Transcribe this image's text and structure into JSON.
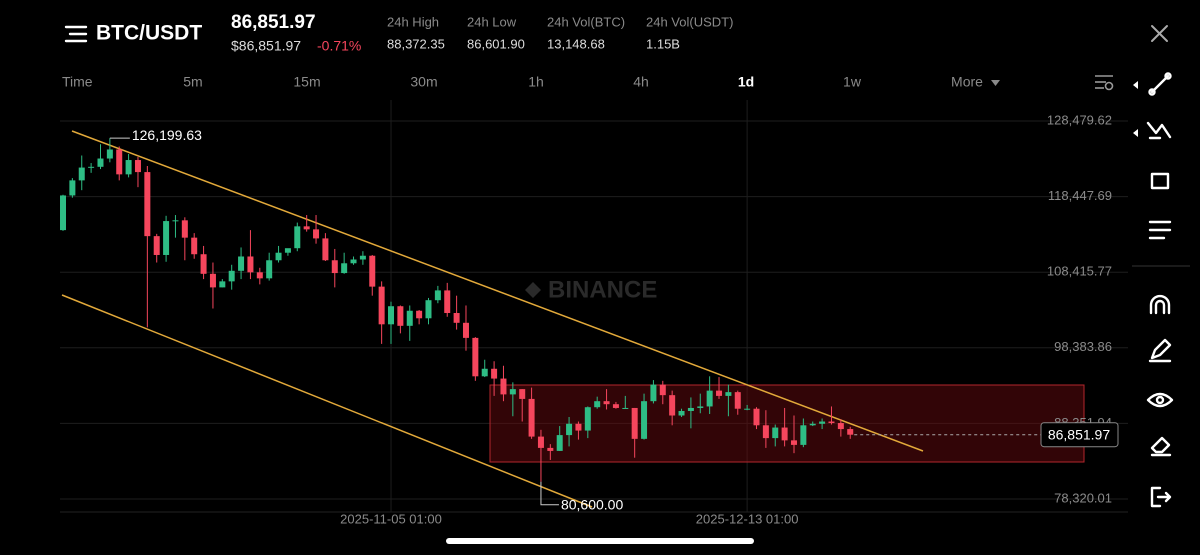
{
  "header": {
    "pair": "BTC/USDT",
    "price": "86,851.97",
    "price_usd": "$86,851.97",
    "change": "-0.71%"
  },
  "stats": [
    {
      "label": "24h High",
      "value": "88,372.35"
    },
    {
      "label": "24h Low",
      "value": "86,601.90"
    },
    {
      "label": "24h Vol(BTC)",
      "value": "13,148.68"
    },
    {
      "label": "24h Vol(USDT)",
      "value": "1.15B"
    }
  ],
  "intervals": [
    "Time",
    "5m",
    "15m",
    "30m",
    "1h",
    "4h",
    "1d",
    "1w",
    "More"
  ],
  "active_interval": "1d",
  "watermark": "BINANCE",
  "chart_data": {
    "type": "candlestick",
    "up_color": "#2ebd85",
    "down_color": "#f6465d",
    "grid": true,
    "candles": [
      [
        114000,
        118700,
        113900,
        118600
      ],
      [
        118600,
        120900,
        118300,
        120600
      ],
      [
        120600,
        123900,
        119300,
        122300
      ],
      [
        122300,
        122900,
        121600,
        122400
      ],
      [
        122400,
        125400,
        122100,
        123500
      ],
      [
        123500,
        126199.63,
        123000,
        124700
      ],
      [
        124700,
        125100,
        120600,
        121400
      ],
      [
        121400,
        124100,
        121000,
        123300
      ],
      [
        123300,
        123700,
        119700,
        121700
      ],
      [
        121700,
        122500,
        101100,
        113200
      ],
      [
        113200,
        113500,
        109700,
        110700
      ],
      [
        110700,
        115900,
        109800,
        115200
      ],
      [
        115200,
        116000,
        113000,
        115300
      ],
      [
        115300,
        115700,
        110000,
        113000
      ],
      [
        113000,
        113600,
        110200,
        110800
      ],
      [
        110800,
        111900,
        107500,
        108200
      ],
      [
        108200,
        109700,
        103600,
        106400
      ],
      [
        106400,
        107500,
        106400,
        107200
      ],
      [
        107200,
        109400,
        106100,
        108600
      ],
      [
        108600,
        111700,
        107500,
        110500
      ],
      [
        110500,
        114000,
        107500,
        108400
      ],
      [
        108400,
        109000,
        106800,
        107600
      ],
      [
        107600,
        111000,
        107300,
        110000
      ],
      [
        110000,
        111900,
        109700,
        111000
      ],
      [
        111000,
        111500,
        110600,
        111600
      ],
      [
        111600,
        115000,
        111200,
        114500
      ],
      [
        114500,
        116000,
        113800,
        114100
      ],
      [
        114100,
        116000,
        112200,
        112900
      ],
      [
        112900,
        113600,
        109900,
        110000
      ],
      [
        110000,
        111500,
        106400,
        108300
      ],
      [
        108300,
        111000,
        108200,
        109600
      ],
      [
        109600,
        110500,
        109400,
        110100
      ],
      [
        110100,
        111200,
        109400,
        110600
      ],
      [
        110600,
        110700,
        105300,
        106500
      ],
      [
        106500,
        107200,
        98900,
        101500
      ],
      [
        101500,
        104500,
        98900,
        103900
      ],
      [
        103900,
        104000,
        100300,
        101300
      ],
      [
        101300,
        104000,
        99300,
        103300
      ],
      [
        103300,
        103400,
        101500,
        102300
      ],
      [
        102300,
        105000,
        101500,
        104700
      ],
      [
        104700,
        106600,
        104300,
        106000
      ],
      [
        106000,
        107000,
        102500,
        103000
      ],
      [
        103000,
        105300,
        100800,
        101700
      ],
      [
        101700,
        104000,
        98000,
        99700
      ],
      [
        99700,
        99800,
        94000,
        94600
      ],
      [
        94600,
        96800,
        94500,
        95600
      ],
      [
        95600,
        96600,
        92000,
        94300
      ],
      [
        94300,
        96000,
        91300,
        92200
      ],
      [
        92200,
        93800,
        89300,
        92900
      ],
      [
        92900,
        92900,
        88600,
        91600
      ],
      [
        91600,
        93100,
        86300,
        86600
      ],
      [
        86600,
        87500,
        80600,
        85100
      ],
      [
        85100,
        85600,
        83500,
        84700
      ],
      [
        84700,
        88000,
        84700,
        86800
      ],
      [
        86800,
        89200,
        85300,
        88300
      ],
      [
        88300,
        88600,
        86200,
        87400
      ],
      [
        87400,
        90600,
        86400,
        90500
      ],
      [
        90500,
        91900,
        90300,
        91300
      ],
      [
        91300,
        92900,
        90200,
        90900
      ],
      [
        90900,
        91200,
        90300,
        90400
      ],
      [
        90400,
        92000,
        90300,
        90400
      ],
      [
        90400,
        90400,
        83800,
        86300
      ],
      [
        86300,
        92300,
        86200,
        91300
      ],
      [
        91300,
        94100,
        91000,
        93500
      ],
      [
        93500,
        94000,
        90900,
        92100
      ],
      [
        92100,
        92700,
        88100,
        89400
      ],
      [
        89400,
        90300,
        89200,
        90000
      ],
      [
        90000,
        91800,
        87700,
        90400
      ],
      [
        90400,
        92300,
        89700,
        90600
      ],
      [
        90600,
        94600,
        89600,
        92700
      ],
      [
        92700,
        94500,
        91600,
        92000
      ],
      [
        92000,
        93500,
        89300,
        92500
      ],
      [
        92500,
        92700,
        89500,
        90300
      ],
      [
        90300,
        90800,
        90100,
        90300
      ],
      [
        90300,
        90500,
        87600,
        88100
      ],
      [
        88100,
        90100,
        85100,
        86400
      ],
      [
        86400,
        88200,
        85300,
        87800
      ],
      [
        87800,
        90400,
        85300,
        86100
      ],
      [
        86100,
        89400,
        84400,
        85500
      ],
      [
        85500,
        89000,
        85200,
        88100
      ],
      [
        88100,
        88600,
        88000,
        88300
      ],
      [
        88300,
        89000,
        87600,
        88600
      ],
      [
        88600,
        90600,
        88200,
        88400
      ],
      [
        88400,
        88900,
        86600,
        87600
      ],
      [
        87600,
        87900,
        86300,
        86851.97
      ]
    ],
    "xlim": [
      0,
      113
    ],
    "xticks": [
      {
        "value": 35,
        "label": "2025-11-05 01:00"
      },
      {
        "value": 73,
        "label": "2025-12-13 01:00"
      }
    ],
    "ylim": [
      76594,
      131266
    ],
    "yticks": [
      {
        "value": 128479.62,
        "label": "128,479.62"
      },
      {
        "value": 118447.69,
        "label": "118,447.69"
      },
      {
        "value": 108415.77,
        "label": "108,415.77"
      },
      {
        "value": 98383.86,
        "label": "98,383.86"
      },
      {
        "value": 88351.94,
        "label": "88,351.94"
      },
      {
        "value": 78320.01,
        "label": "78,320.01"
      }
    ],
    "high_label": {
      "value": 126199.63,
      "label": "126,199.63"
    },
    "low_label": {
      "value": 80600,
      "label": "80,600.00"
    },
    "last_price": {
      "value": 86851.97,
      "label": "86,851.97"
    }
  }
}
